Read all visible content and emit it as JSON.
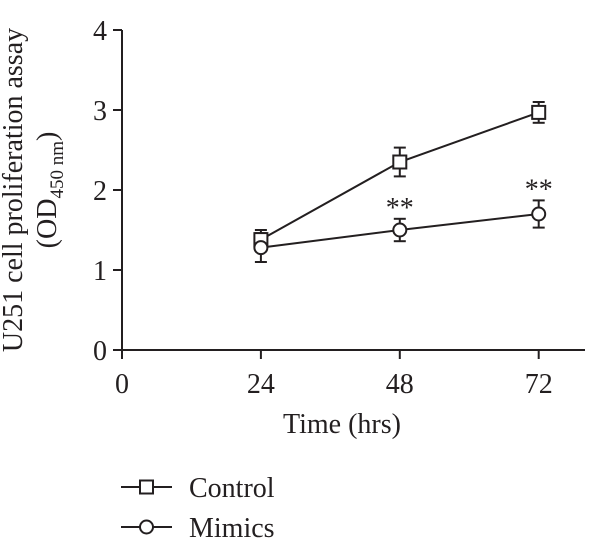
{
  "chart_data": {
    "type": "line",
    "title": "",
    "xlabel": "Time (hrs)",
    "ylabel_line1": "U251 cell proliferation assay",
    "ylabel_line2_prefix": "(OD",
    "ylabel_line2_subscript": "450 nm",
    "ylabel_line2_suffix": ")",
    "x_ticks": [
      "0",
      "24",
      "48",
      "72"
    ],
    "x_tick_values": [
      0,
      24,
      48,
      72
    ],
    "y_ticks": [
      "0",
      "1",
      "2",
      "3",
      "4"
    ],
    "y_tick_values": [
      0,
      1,
      2,
      3,
      4
    ],
    "xlim": [
      0,
      80
    ],
    "ylim": [
      0,
      4
    ],
    "grid": false,
    "legend_position": "bottom-left",
    "series": [
      {
        "name": "Control",
        "marker": "square",
        "x": [
          24,
          48,
          72
        ],
        "y": [
          1.38,
          2.35,
          2.97
        ],
        "err": [
          0.12,
          0.18,
          0.13
        ]
      },
      {
        "name": "Mimics",
        "marker": "circle",
        "x": [
          24,
          48,
          72
        ],
        "y": [
          1.28,
          1.5,
          1.7
        ],
        "err": [
          0.18,
          0.14,
          0.17
        ]
      }
    ],
    "annotations": [
      {
        "text": "**",
        "x": 48,
        "series": "Mimics"
      },
      {
        "text": "**",
        "x": 72,
        "series": "Mimics"
      }
    ]
  }
}
